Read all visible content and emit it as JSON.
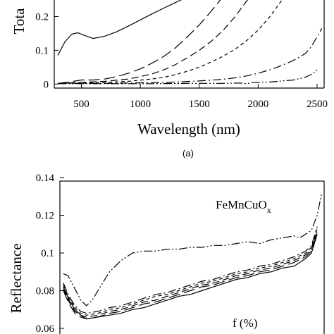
{
  "chart_data": [
    {
      "type": "line",
      "panel_label": "(a)",
      "xlabel": "Wavelength (nm)",
      "ylabel": "Tota",
      "xlim": [
        270,
        2560
      ],
      "ylim": [
        -0.012,
        0.27
      ],
      "x_ticks": [
        500,
        1000,
        1500,
        2000,
        2500
      ],
      "x_tick_labels": [
        "500",
        "1000",
        "1500",
        "2000",
        "2500"
      ],
      "y_ticks": [
        0,
        0.1,
        0.2
      ],
      "y_tick_labels": [
        "0",
        "0.1",
        "0.2"
      ],
      "series": [
        {
          "dash": "solid",
          "x": [
            300,
            360,
            420,
            470,
            520,
            600,
            700,
            800,
            900,
            1000,
            1100,
            1200,
            1300,
            1400,
            1500,
            1530
          ],
          "y": [
            0.085,
            0.125,
            0.148,
            0.152,
            0.145,
            0.135,
            0.142,
            0.155,
            0.172,
            0.19,
            0.208,
            0.225,
            0.242,
            0.258,
            0.272,
            0.28
          ]
        },
        {
          "dash": "long-dash",
          "x": [
            300,
            400,
            500,
            600,
            700,
            800,
            900,
            1000,
            1100,
            1200,
            1300,
            1400,
            1500,
            1600,
            1700,
            1780
          ],
          "y": [
            0.002,
            0.006,
            0.012,
            0.012,
            0.015,
            0.022,
            0.032,
            0.045,
            0.062,
            0.082,
            0.108,
            0.14,
            0.175,
            0.215,
            0.258,
            0.28
          ]
        },
        {
          "dash": "dash",
          "x": [
            300,
            500,
            700,
            900,
            1000,
            1100,
            1200,
            1300,
            1400,
            1500,
            1600,
            1700,
            1800,
            1900,
            1980
          ],
          "y": [
            0.002,
            0.005,
            0.008,
            0.015,
            0.022,
            0.03,
            0.042,
            0.058,
            0.078,
            0.1,
            0.126,
            0.158,
            0.198,
            0.245,
            0.28
          ]
        },
        {
          "dash": "short-dash",
          "x": [
            300,
            500,
            700,
            900,
            1100,
            1200,
            1300,
            1400,
            1500,
            1600,
            1700,
            1800,
            1900,
            2000,
            2100,
            2200,
            2280
          ],
          "y": [
            0.002,
            0.003,
            0.005,
            0.008,
            0.015,
            0.02,
            0.028,
            0.038,
            0.05,
            0.065,
            0.082,
            0.102,
            0.128,
            0.16,
            0.2,
            0.248,
            0.28
          ]
        },
        {
          "dash": "dash-dot",
          "x": [
            300,
            500,
            700,
            900,
            1100,
            1300,
            1500,
            1700,
            1800,
            1900,
            2000,
            2100,
            2200,
            2300,
            2400,
            2450,
            2500,
            2540
          ],
          "y": [
            0.002,
            0.002,
            0.002,
            0.003,
            0.004,
            0.006,
            0.009,
            0.014,
            0.018,
            0.024,
            0.032,
            0.042,
            0.055,
            0.07,
            0.09,
            0.11,
            0.14,
            0.165
          ]
        },
        {
          "dash": "dash-dot-dot",
          "x": [
            300,
            500,
            800,
            1100,
            1400,
            1700,
            1850,
            1900,
            1950,
            2100,
            2300,
            2400,
            2460,
            2500
          ],
          "y": [
            0.001,
            0.001,
            0.001,
            0.001,
            0.002,
            0.002,
            0.003,
            0.001,
            0.004,
            0.006,
            0.012,
            0.02,
            0.03,
            0.042
          ]
        }
      ]
    },
    {
      "type": "line",
      "ylabel": "Reflectance",
      "annotation": "FeMnCuO",
      "annotation_subscript": "x",
      "legend_title": "f (%)",
      "xlim": [
        270,
        2560
      ],
      "ylim": [
        0.06,
        0.14
      ],
      "y_ticks": [
        0.06,
        0.08,
        0.1,
        0.12,
        0.14
      ],
      "y_tick_labels": [
        "0.06",
        "0.08",
        "0.1",
        "0.12",
        "0.14"
      ],
      "series": [
        {
          "dash": "dash-dot-dot",
          "x": [
            300,
            340,
            400,
            450,
            500,
            550,
            600,
            650,
            700,
            800,
            900,
            1000,
            1100,
            1200,
            1300,
            1400,
            1500,
            1600,
            1700,
            1800,
            1900,
            2000,
            2100,
            2200,
            2300,
            2350,
            2400,
            2450,
            2500,
            2540
          ],
          "y": [
            0.089,
            0.088,
            0.081,
            0.075,
            0.072,
            0.075,
            0.08,
            0.085,
            0.09,
            0.096,
            0.1,
            0.101,
            0.101,
            0.102,
            0.102,
            0.103,
            0.103,
            0.104,
            0.104,
            0.105,
            0.106,
            0.105,
            0.107,
            0.108,
            0.109,
            0.108,
            0.11,
            0.112,
            0.12,
            0.132
          ]
        },
        {
          "dash": "solid",
          "x": [
            300,
            350,
            400,
            450,
            500,
            600,
            700,
            800,
            900,
            1000,
            1100,
            1200,
            1300,
            1400,
            1500,
            1600,
            1700,
            1800,
            1900,
            2000,
            2100,
            2200,
            2300,
            2400,
            2450,
            2500
          ],
          "y": [
            0.082,
            0.075,
            0.07,
            0.067,
            0.065,
            0.066,
            0.067,
            0.068,
            0.07,
            0.071,
            0.073,
            0.075,
            0.077,
            0.078,
            0.08,
            0.082,
            0.084,
            0.086,
            0.087,
            0.089,
            0.09,
            0.092,
            0.093,
            0.097,
            0.1,
            0.11
          ]
        },
        {
          "dash": "long-dash",
          "x": [
            300,
            350,
            400,
            450,
            500,
            600,
            700,
            800,
            900,
            1000,
            1100,
            1200,
            1300,
            1400,
            1500,
            1600,
            1700,
            1800,
            1900,
            2000,
            2100,
            2200,
            2300,
            2400,
            2450,
            2500
          ],
          "y": [
            0.08,
            0.073,
            0.068,
            0.066,
            0.065,
            0.066,
            0.068,
            0.069,
            0.071,
            0.073,
            0.074,
            0.076,
            0.078,
            0.08,
            0.082,
            0.083,
            0.085,
            0.087,
            0.088,
            0.09,
            0.091,
            0.093,
            0.095,
            0.098,
            0.101,
            0.111
          ]
        },
        {
          "dash": "dash",
          "x": [
            300,
            350,
            400,
            450,
            500,
            600,
            700,
            800,
            900,
            1000,
            1100,
            1200,
            1300,
            1400,
            1500,
            1600,
            1700,
            1800,
            1900,
            2000,
            2100,
            2200,
            2300,
            2400,
            2450,
            2500
          ],
          "y": [
            0.081,
            0.074,
            0.069,
            0.067,
            0.066,
            0.067,
            0.069,
            0.07,
            0.072,
            0.074,
            0.075,
            0.077,
            0.079,
            0.081,
            0.083,
            0.084,
            0.086,
            0.088,
            0.089,
            0.091,
            0.092,
            0.094,
            0.096,
            0.099,
            0.102,
            0.112
          ]
        },
        {
          "dash": "short-dash",
          "x": [
            300,
            350,
            400,
            450,
            500,
            600,
            700,
            800,
            900,
            1000,
            1100,
            1200,
            1300,
            1400,
            1500,
            1600,
            1700,
            1800,
            1900,
            2000,
            2100,
            2200,
            2300,
            2400,
            2450,
            2500
          ],
          "y": [
            0.083,
            0.076,
            0.071,
            0.068,
            0.067,
            0.068,
            0.07,
            0.071,
            0.073,
            0.075,
            0.077,
            0.078,
            0.08,
            0.082,
            0.084,
            0.085,
            0.087,
            0.089,
            0.09,
            0.092,
            0.093,
            0.095,
            0.097,
            0.1,
            0.103,
            0.113
          ]
        },
        {
          "dash": "dash-dot",
          "x": [
            300,
            350,
            400,
            450,
            500,
            600,
            700,
            800,
            900,
            1000,
            1100,
            1200,
            1300,
            1400,
            1500,
            1600,
            1700,
            1800,
            1900,
            2000,
            2100,
            2200,
            2300,
            2400,
            2450,
            2500
          ],
          "y": [
            0.084,
            0.077,
            0.072,
            0.069,
            0.068,
            0.069,
            0.071,
            0.072,
            0.074,
            0.076,
            0.078,
            0.079,
            0.081,
            0.083,
            0.085,
            0.086,
            0.088,
            0.09,
            0.091,
            0.093,
            0.094,
            0.096,
            0.098,
            0.101,
            0.104,
            0.114
          ]
        }
      ]
    }
  ]
}
